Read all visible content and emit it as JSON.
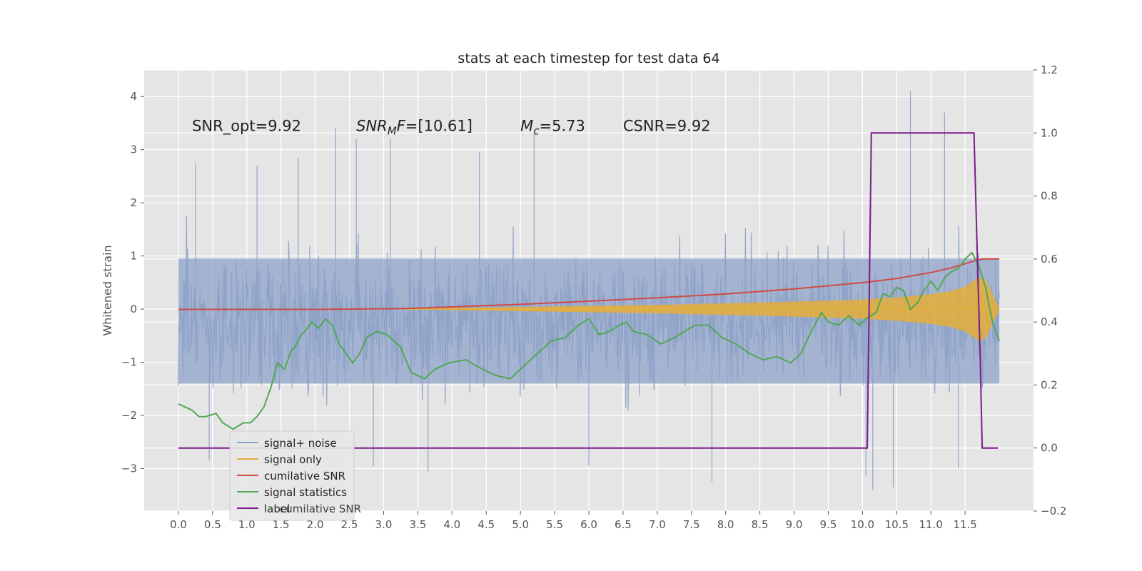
{
  "chart_data": {
    "type": "line",
    "title": "stats at each timestep for test data 64",
    "ylabel": "Whitened strain",
    "xlim": [
      -0.5,
      12.5
    ],
    "ylim": [
      -3.8,
      4.5
    ],
    "y2lim": [
      -0.2,
      1.2
    ],
    "grid": true,
    "legend_position": "lower-left",
    "x_ticks": [
      0.0,
      0.5,
      1.0,
      1.5,
      2.0,
      2.5,
      3.0,
      3.5,
      4.0,
      4.5,
      5.0,
      5.5,
      6.0,
      6.5,
      7.0,
      7.5,
      8.0,
      8.5,
      9.0,
      9.5,
      10.0,
      10.5,
      11.0,
      11.5
    ],
    "x_tick_labels": [
      "0.0",
      "0.5",
      "1.0",
      "1.5",
      "2.0",
      "2.5",
      "3.0",
      "3.5",
      "4.0",
      "4.5",
      "5.0",
      "5.5",
      "6.0",
      "6.5",
      "7.0",
      "7.5",
      "8.0",
      "8.5",
      "9.0",
      "9.5",
      "10.0",
      "10.5",
      "11.0",
      "11.5"
    ],
    "y_ticks": [
      -3,
      -2,
      -1,
      0,
      1,
      2,
      3,
      4
    ],
    "y_tick_labels": [
      "−3",
      "−2",
      "−1",
      "0",
      "1",
      "2",
      "3",
      "4"
    ],
    "y2_ticks": [
      -0.2,
      0.0,
      0.2,
      0.4,
      0.6,
      0.8,
      1.0,
      1.2
    ],
    "y2_tick_labels": [
      "−0.2",
      "0.0",
      "0.2",
      "0.4",
      "0.6",
      "0.8",
      "1.0",
      "1.2"
    ],
    "annotations": [
      {
        "text": "SNR_opt=9.92",
        "x": 0.2,
        "y": 3.35
      },
      {
        "text": "SNR_MF=[10.61]",
        "x": 2.6,
        "y": 3.35
      },
      {
        "text": "M_c=5.73",
        "x": 5.0,
        "y": 3.35
      },
      {
        "text": "CSNR=9.92",
        "x": 6.5,
        "y": 3.35
      }
    ],
    "series": [
      {
        "name": "signal+ noise",
        "color": "#8ea2c8",
        "axis": "left",
        "description": "noise band",
        "x_range": [
          0.0,
          12.0
        ],
        "typical_amplitude": [
          -1.4,
          0.95
        ],
        "max_excursion": [
          -3.4,
          4.1
        ],
        "spikes": [
          [
            0.25,
            2.75
          ],
          [
            0.45,
            -2.85
          ],
          [
            1.15,
            2.7
          ],
          [
            1.75,
            2.85
          ],
          [
            2.3,
            3.4
          ],
          [
            2.6,
            3.2
          ],
          [
            2.85,
            -2.95
          ],
          [
            3.1,
            3.2
          ],
          [
            3.65,
            -3.05
          ],
          [
            4.4,
            2.95
          ],
          [
            5.2,
            3.3
          ],
          [
            6.0,
            -2.95
          ],
          [
            7.8,
            -3.25
          ],
          [
            10.05,
            -3.15
          ],
          [
            10.15,
            -3.4
          ],
          [
            10.45,
            -3.35
          ],
          [
            10.7,
            4.1
          ],
          [
            11.2,
            3.7
          ],
          [
            11.4,
            -3.0
          ]
        ]
      },
      {
        "name": "signal only",
        "color": "#e5ae38",
        "axis": "left",
        "x_range": [
          3.3,
          12.0
        ],
        "envelope_x": [
          3.3,
          4.0,
          5.0,
          6.0,
          7.0,
          8.0,
          9.0,
          10.0,
          10.5,
          11.0,
          11.3,
          11.5,
          11.7,
          11.8,
          12.0
        ],
        "envelope_amp": [
          0.0,
          0.02,
          0.04,
          0.06,
          0.08,
          0.11,
          0.14,
          0.18,
          0.22,
          0.28,
          0.34,
          0.42,
          0.6,
          0.55,
          0.02
        ]
      },
      {
        "name": "cumilative SNR",
        "color": "#d04a42",
        "axis": "right",
        "x": [
          0.0,
          1.0,
          2.0,
          3.0,
          3.3,
          4.0,
          5.0,
          6.0,
          7.0,
          8.0,
          9.0,
          10.0,
          10.5,
          11.0,
          11.3,
          11.5,
          11.65,
          11.75,
          12.0
        ],
        "y": [
          0.44,
          0.44,
          0.44,
          0.442,
          0.443,
          0.448,
          0.456,
          0.466,
          0.477,
          0.489,
          0.505,
          0.525,
          0.538,
          0.557,
          0.572,
          0.585,
          0.595,
          0.6,
          0.6
        ]
      },
      {
        "name": "signal statistics",
        "color": "#50a852",
        "axis": "right",
        "x": [
          0.0,
          0.2,
          0.3,
          0.4,
          0.55,
          0.65,
          0.8,
          0.95,
          1.05,
          1.15,
          1.25,
          1.35,
          1.45,
          1.55,
          1.65,
          1.7,
          1.8,
          1.85,
          1.95,
          2.05,
          2.15,
          2.25,
          2.35,
          2.45,
          2.55,
          2.65,
          2.75,
          2.9,
          3.05,
          3.25,
          3.4,
          3.6,
          3.75,
          3.95,
          4.2,
          4.45,
          4.65,
          4.85,
          5.05,
          5.25,
          5.45,
          5.65,
          5.85,
          6.0,
          6.15,
          6.3,
          6.45,
          6.55,
          6.65,
          6.85,
          7.05,
          7.25,
          7.4,
          7.55,
          7.75,
          7.95,
          8.15,
          8.35,
          8.55,
          8.75,
          8.95,
          9.1,
          9.25,
          9.4,
          9.5,
          9.65,
          9.8,
          9.95,
          10.05,
          10.2,
          10.3,
          10.4,
          10.5,
          10.6,
          10.7,
          10.8,
          10.9,
          11.0,
          11.1,
          11.2,
          11.3,
          11.4,
          11.5,
          11.6,
          11.7,
          11.8,
          11.9,
          12.0
        ],
        "y": [
          0.14,
          0.12,
          0.1,
          0.1,
          0.11,
          0.08,
          0.06,
          0.08,
          0.08,
          0.1,
          0.13,
          0.19,
          0.27,
          0.25,
          0.31,
          0.32,
          0.36,
          0.37,
          0.4,
          0.38,
          0.41,
          0.39,
          0.33,
          0.3,
          0.27,
          0.3,
          0.35,
          0.37,
          0.36,
          0.32,
          0.24,
          0.22,
          0.25,
          0.27,
          0.28,
          0.25,
          0.23,
          0.22,
          0.26,
          0.3,
          0.34,
          0.35,
          0.39,
          0.41,
          0.36,
          0.37,
          0.39,
          0.4,
          0.37,
          0.36,
          0.33,
          0.35,
          0.37,
          0.39,
          0.39,
          0.35,
          0.33,
          0.3,
          0.28,
          0.29,
          0.27,
          0.3,
          0.37,
          0.43,
          0.4,
          0.39,
          0.42,
          0.39,
          0.41,
          0.43,
          0.49,
          0.48,
          0.51,
          0.5,
          0.44,
          0.46,
          0.5,
          0.53,
          0.5,
          0.54,
          0.56,
          0.57,
          0.6,
          0.62,
          0.58,
          0.51,
          0.4,
          0.34
        ]
      },
      {
        "name": "label",
        "color": "#7b1a8a",
        "axis": "right",
        "x": [
          0.0,
          10.07,
          10.13,
          11.63,
          11.68,
          11.72,
          11.75,
          11.98
        ],
        "y": [
          0.0,
          0.0,
          1.0,
          1.0,
          0.6,
          0.3,
          0.0,
          0.0
        ]
      }
    ],
    "legend_overlap_text": "cumilative SNR"
  }
}
